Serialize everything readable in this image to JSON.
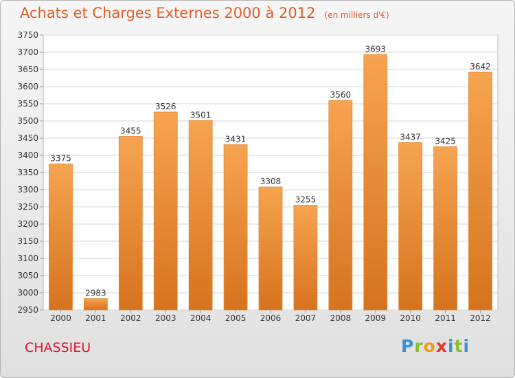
{
  "header": {
    "title": "Achats et Charges Externes 2000 à 2012",
    "unit": "(en milliers d'€)"
  },
  "footer": {
    "city": "CHASSIEU",
    "logo": "Proxiti"
  },
  "colors": {
    "bar_top": "#f6a451",
    "bar_bottom": "#d6731e",
    "title": "#e35d25",
    "city": "#e0142e"
  },
  "chart_data": {
    "type": "bar",
    "title": "Achats et Charges Externes 2000 à 2012",
    "subtitle": "(en milliers d'€)",
    "categories": [
      "2000",
      "2001",
      "2002",
      "2003",
      "2004",
      "2005",
      "2006",
      "2007",
      "2008",
      "2009",
      "2010",
      "2011",
      "2012"
    ],
    "values": [
      3375,
      2983,
      3455,
      3526,
      3501,
      3431,
      3308,
      3255,
      3560,
      3693,
      3437,
      3425,
      3642
    ],
    "ylim": [
      2950,
      3750
    ],
    "yticks": [
      2950,
      3000,
      3050,
      3100,
      3150,
      3200,
      3250,
      3300,
      3350,
      3400,
      3450,
      3500,
      3550,
      3600,
      3650,
      3700,
      3750
    ],
    "grid": true,
    "data_labels": true,
    "xlabel": "",
    "ylabel": ""
  }
}
